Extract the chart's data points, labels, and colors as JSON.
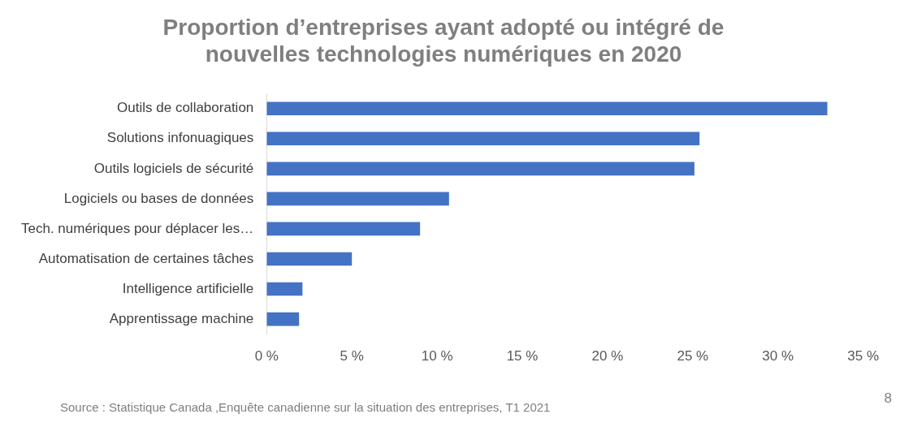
{
  "chart_data": {
    "type": "bar",
    "orientation": "horizontal",
    "title": "Proportion d’entreprises ayant adopté ou intégré de nouvelles technologies numériques en 2020",
    "categories": [
      "Outils de collaboration",
      "Solutions infonuagiques",
      "Outils logiciels de sécurité",
      "Logiciels ou bases de données",
      "Tech. numériques pour déplacer les…",
      "Automatisation de certaines tâches",
      "Intelligence artificielle",
      "Apprentissage machine"
    ],
    "values": [
      32.9,
      25.4,
      25.1,
      10.7,
      9.0,
      5.0,
      2.1,
      1.9
    ],
    "color": "#4472c4",
    "xlim": [
      0,
      35
    ],
    "xticks": [
      {
        "value": 0,
        "label": "0 %"
      },
      {
        "value": 5,
        "label": "5 %"
      },
      {
        "value": 10,
        "label": "10 %"
      },
      {
        "value": 15,
        "label": "15 %"
      },
      {
        "value": 20,
        "label": "20 %"
      },
      {
        "value": 25,
        "label": "25 %"
      },
      {
        "value": 30,
        "label": "30 %"
      },
      {
        "value": 35,
        "label": "35 %"
      }
    ],
    "grid": false,
    "legend": false,
    "annotations": [
      "Source : Statistique Canada ,Enquête canadienne sur la situation des entreprises, T1 2021",
      "8"
    ]
  }
}
